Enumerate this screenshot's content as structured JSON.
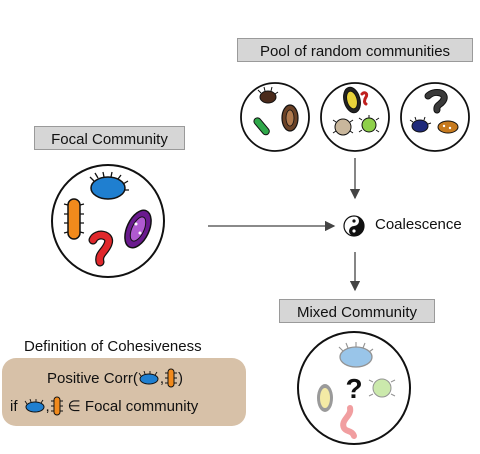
{
  "labels": {
    "pool": "Pool of random communities",
    "focal": "Focal Community",
    "mixed": "Mixed Community",
    "coalescence": "Coalescence",
    "definition_title": "Definition of Cohesiveness",
    "positive_corr_prefix": "Positive Corr(",
    "positive_corr_comma": ",",
    "positive_corr_suffix": ")",
    "if_prefix": "if",
    "if_comma": ",",
    "if_suffix": "∈ Focal community"
  },
  "mixed_community": {
    "question_mark": "?"
  },
  "icons": [
    "yin-yang-icon",
    "arrow-icon",
    "bacterium-icon"
  ],
  "colors": {
    "label_box": "#d6d6d6",
    "definition_box": "#d7c1a8",
    "blue_microbe": "#1f7fd0",
    "orange_microbe": "#f18a1c",
    "purple_microbe": "#6a1a8e",
    "red_microbe": "#e0282c"
  }
}
